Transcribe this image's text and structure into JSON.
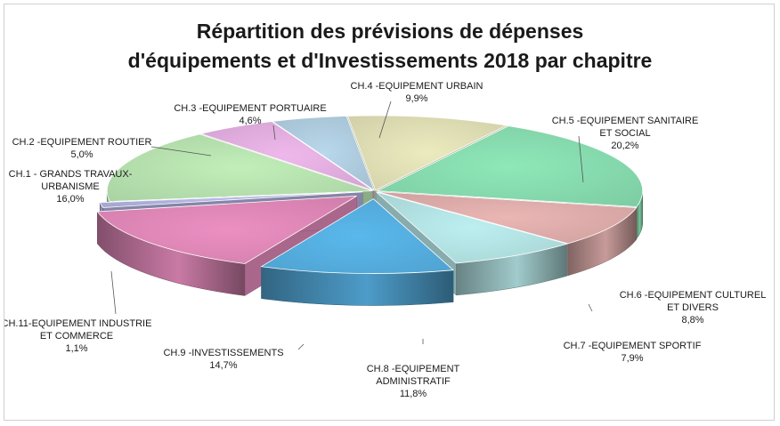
{
  "chart_data": {
    "type": "pie",
    "title_lines": [
      "Répartition des prévisions de dépenses",
      "d'équipements et d'Investissements 2018 par chapitre"
    ],
    "slices": [
      {
        "label_lines": [
          "CH.4 -EQUIPEMENT URBAIN"
        ],
        "value_label": "9,9%",
        "value": 9.9,
        "color": "#ecebbf"
      },
      {
        "label_lines": [
          "CH.5 -EQUIPEMENT SANITAIRE",
          "ET SOCIAL"
        ],
        "value_label": "20,2%",
        "value": 20.2,
        "color": "#8ee8b8"
      },
      {
        "label_lines": [
          "CH.6 -EQUIPEMENT CULTUREL",
          "ET DIVERS"
        ],
        "value_label": "8,8%",
        "value": 8.8,
        "color": "#eab6b4"
      },
      {
        "label_lines": [
          "CH.7 -EQUIPEMENT SPORTIF"
        ],
        "value_label": "7,9%",
        "value": 7.9,
        "color": "#bdeff0"
      },
      {
        "label_lines": [
          "CH.8 -EQUIPEMENT",
          "ADMINISTRATIF"
        ],
        "value_label": "11,8%",
        "value": 11.8,
        "color": "#5ab8ec"
      },
      {
        "label_lines": [
          "CH.9 -INVESTISSEMENTS"
        ],
        "value_label": "14,7%",
        "value": 14.7,
        "color": "#ec8fc2"
      },
      {
        "label_lines": [
          "CH.11-EQUIPEMENT INDUSTRIE",
          "ET COMMERCE"
        ],
        "value_label": "1,1%",
        "value": 1.1,
        "color": "#b9b9ea"
      },
      {
        "label_lines": [
          "CH.1 - GRANDS TRAVAUX-",
          "URBANISME"
        ],
        "value_label": "16,0%",
        "value": 16.0,
        "color": "#c1efb9"
      },
      {
        "label_lines": [
          "CH.2 -EQUIPEMENT ROUTIER"
        ],
        "value_label": "5,0%",
        "value": 5.0,
        "color": "#efb8ec"
      },
      {
        "label_lines": [
          "CH.3 -EQUIPEMENT PORTUAIRE"
        ],
        "value_label": "4,6%",
        "value": 4.6,
        "color": "#b9d8ec"
      }
    ]
  }
}
